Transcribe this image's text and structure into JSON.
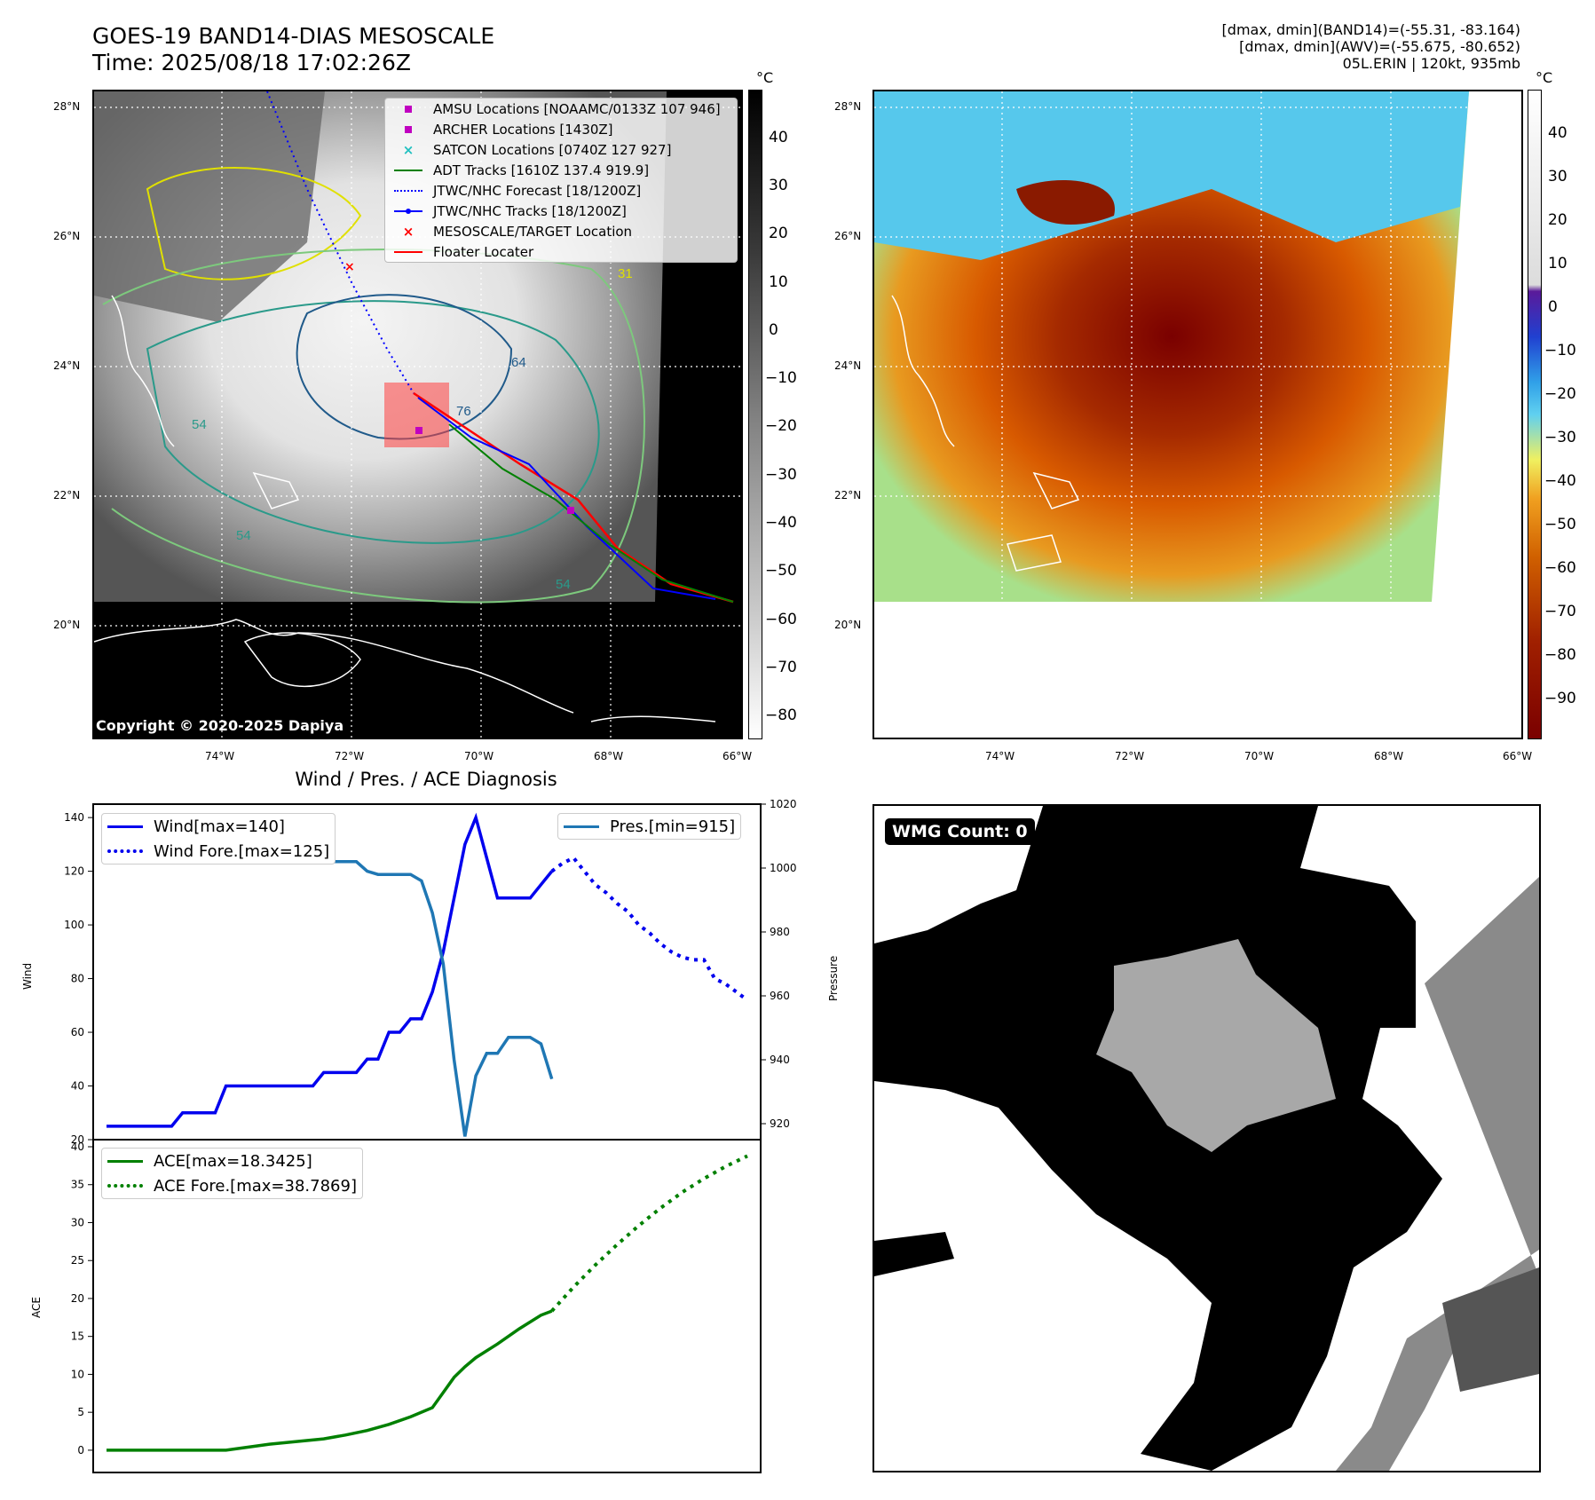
{
  "header": {
    "title_line1": "GOES-19 BAND14-DIAS MESOSCALE",
    "title_line2": "Time: 2025/08/18 17:02:26Z",
    "info_line1": "[dmax, dmin](BAND14)=(-55.31, -83.164)",
    "info_line2": "[dmax, dmin](AWV)=(-55.675, -80.652)",
    "info_line3": "05L.ERIN | 120kt, 935mb"
  },
  "map_axes": {
    "lat_labels": [
      "28°N",
      "26°N",
      "24°N",
      "22°N",
      "20°N"
    ],
    "lon_labels": [
      "74°W",
      "72°W",
      "70°W",
      "68°W",
      "66°W"
    ]
  },
  "map_left": {
    "copyright": "Copyright © 2020-2025 Dapiya",
    "colorbar_unit": "°C",
    "colorbar_ticks": [
      "40",
      "30",
      "20",
      "10",
      "0",
      "−10",
      "−20",
      "−30",
      "−40",
      "−50",
      "−60",
      "−70",
      "−80"
    ],
    "contour_labels": [
      "54",
      "64",
      "76",
      "54",
      "54",
      "31"
    ],
    "legend": [
      {
        "label": "AMSU Locations [NOAAMC/0133Z 107 946]",
        "marker": "square",
        "color": "#c000c0"
      },
      {
        "label": "ARCHER Locations [1430Z]",
        "marker": "square",
        "color": "#c000c0"
      },
      {
        "label": "SATCON Locations [0740Z 127 927]",
        "marker": "x",
        "color": "#20c0c0"
      },
      {
        "label": "ADT Tracks [1610Z 137.4 919.9]",
        "marker": "line",
        "color": "#008000"
      },
      {
        "label": "JTWC/NHC Forecast [18/1200Z]",
        "marker": "dotted",
        "color": "#0000ff"
      },
      {
        "label": "JTWC/NHC Tracks [18/1200Z]",
        "marker": "line-dot",
        "color": "#0000ff"
      },
      {
        "label": "MESOSCALE/TARGET Location",
        "marker": "x",
        "color": "#ff0000"
      },
      {
        "label": "Floater Locater",
        "marker": "line",
        "color": "#ff0000"
      }
    ]
  },
  "map_right": {
    "colorbar_unit": "°C",
    "colorbar_ticks": [
      "40",
      "30",
      "20",
      "10",
      "0",
      "−10",
      "−20",
      "−30",
      "−40",
      "−50",
      "−60",
      "−70",
      "−80",
      "−90"
    ]
  },
  "diagnosis": {
    "title": "Wind / Pres. / ACE Diagnosis",
    "wind_axis_label": "Wind",
    "pressure_axis_label": "Pressure",
    "ace_axis_label": "ACE",
    "wind_ticks": [
      "140",
      "120",
      "100",
      "80",
      "60",
      "40",
      "20"
    ],
    "pressure_ticks": [
      "1020",
      "1000",
      "980",
      "960",
      "940",
      "920"
    ],
    "ace_ticks": [
      "40",
      "35",
      "30",
      "25",
      "20",
      "15",
      "10",
      "5",
      "0"
    ],
    "legend_wind": "Wind[max=140]",
    "legend_wind_fore": "Wind Fore.[max=125]",
    "legend_pres": "Pres.[min=915]",
    "legend_ace": "ACE[max=18.3425]",
    "legend_ace_fore": "ACE Fore.[max=38.7869]"
  },
  "wmg": {
    "label": "WMG Count: 0"
  },
  "colors": {
    "wind": "#0000ee",
    "pressure": "#1f77b4",
    "ace": "#008000",
    "floater": "#ff0000"
  },
  "chart_data": [
    {
      "type": "line",
      "title": "Wind / Pres. / ACE Diagnosis",
      "ylabel": "Wind",
      "ylim": [
        20,
        145
      ],
      "x": [
        0,
        1,
        2,
        3,
        4,
        5,
        6,
        7,
        8,
        9,
        10,
        11,
        12,
        13,
        14,
        15,
        16,
        17,
        18,
        19,
        20,
        21,
        22,
        23,
        24,
        25,
        26,
        27,
        28,
        29,
        30,
        31,
        32,
        33,
        34,
        35,
        36,
        37,
        38,
        39,
        40,
        41,
        42,
        43,
        44,
        45,
        46,
        47,
        48,
        49,
        50,
        51,
        52,
        53,
        54,
        55,
        56,
        57,
        58,
        59
      ],
      "series": [
        {
          "name": "Wind[max=140]",
          "x": [
            0,
            1,
            2,
            3,
            4,
            5,
            6,
            7,
            8,
            9,
            10,
            11,
            12,
            13,
            14,
            15,
            16,
            17,
            18,
            19,
            20,
            21,
            22,
            23,
            24,
            25,
            26,
            27,
            28,
            29,
            30,
            31,
            32,
            33,
            34,
            35,
            36,
            37,
            38,
            39,
            40,
            41
          ],
          "values": [
            25,
            25,
            25,
            25,
            25,
            25,
            25,
            30,
            30,
            30,
            30,
            40,
            40,
            40,
            40,
            40,
            40,
            40,
            40,
            40,
            45,
            45,
            45,
            45,
            50,
            50,
            60,
            60,
            65,
            65,
            75,
            90,
            110,
            130,
            140,
            125,
            110,
            110,
            110,
            110,
            115,
            120
          ]
        },
        {
          "name": "Wind Fore.[max=125]",
          "x": [
            41,
            42,
            43,
            44,
            45,
            46,
            47,
            48,
            49,
            50,
            51,
            52,
            53,
            54,
            55,
            56,
            57,
            58,
            59
          ],
          "values": [
            120,
            123,
            125,
            120,
            115,
            112,
            108,
            105,
            100,
            97,
            93,
            90,
            88,
            87,
            87,
            80,
            78,
            75,
            72
          ]
        },
        {
          "name": "Pres.[min=915]",
          "axis": "right",
          "ylim": [
            915,
            1020
          ],
          "x": [
            0,
            1,
            2,
            3,
            4,
            5,
            6,
            7,
            8,
            9,
            10,
            11,
            12,
            13,
            14,
            15,
            16,
            17,
            18,
            19,
            20,
            21,
            22,
            23,
            24,
            25,
            26,
            27,
            28,
            29,
            30,
            31,
            32,
            33,
            34,
            35,
            36,
            37,
            38,
            39,
            40,
            41
          ],
          "values": [
            1015,
            1015,
            1008,
            1006,
            1006,
            1006,
            1006,
            1006,
            1006,
            1004,
            1004,
            1004,
            1004,
            1004,
            1006,
            1006,
            1006,
            1004,
            1004,
            1002,
            1002,
            1002,
            1002,
            1002,
            999,
            998,
            998,
            998,
            998,
            996,
            986,
            970,
            940,
            916,
            935,
            942,
            942,
            947,
            947,
            947,
            945,
            934
          ]
        }
      ]
    },
    {
      "type": "line",
      "ylabel": "ACE",
      "ylim": [
        -2,
        40
      ],
      "series": [
        {
          "name": "ACE[max=18.3425]",
          "x": [
            0,
            5,
            10,
            11,
            15,
            20,
            22,
            24,
            26,
            28,
            30,
            31,
            32,
            33,
            34,
            36,
            38,
            40,
            41
          ],
          "values": [
            0,
            0,
            0,
            0,
            0.8,
            1.5,
            2,
            2.6,
            3.4,
            4.4,
            5.6,
            7.6,
            9.6,
            11,
            12.2,
            14,
            16,
            17.8,
            18.3425
          ]
        },
        {
          "name": "ACE Fore.[max=38.7869]",
          "x": [
            41,
            43,
            45,
            47,
            49,
            51,
            53,
            55,
            57,
            59
          ],
          "values": [
            18.3425,
            21.5,
            24.4,
            27.1,
            29.6,
            31.9,
            34,
            35.8,
            37.4,
            38.7869
          ]
        }
      ]
    }
  ]
}
